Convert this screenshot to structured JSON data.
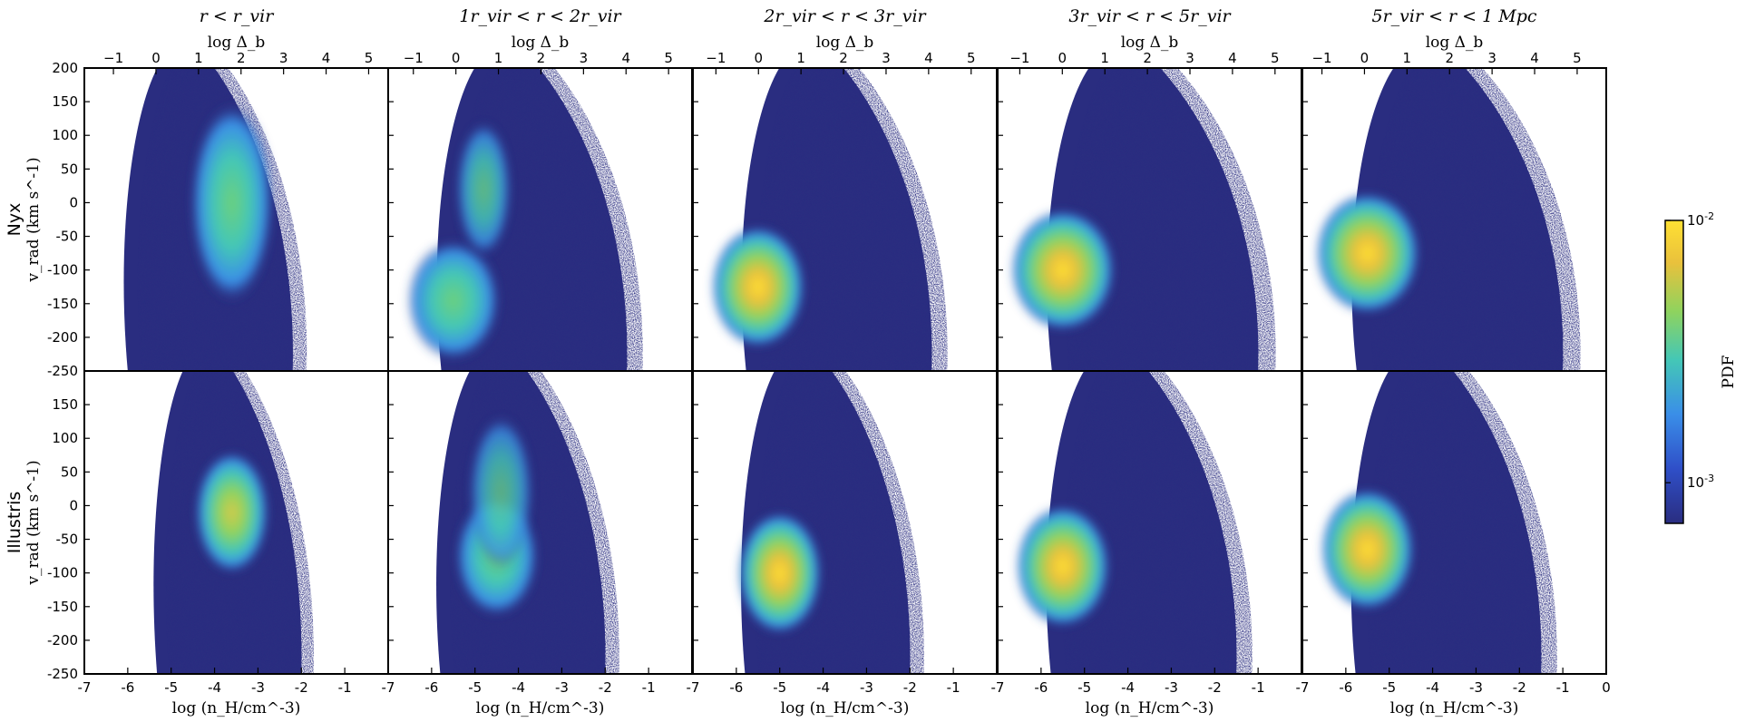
{
  "chart_data": {
    "type": "heatmap",
    "colors": {
      "background": "#ffffff",
      "low": "#2a2d80",
      "colormap": [
        "#2a2d80",
        "#2f4fc8",
        "#3a8ee8",
        "#44c7b6",
        "#8fd35e",
        "#e9c13c",
        "#ffe033"
      ]
    },
    "columns": [
      {
        "title": "r < r_vir"
      },
      {
        "title": "1r_vir < r < 2r_vir"
      },
      {
        "title": "2r_vir < r < 3r_vir"
      },
      {
        "title": "3r_vir < r < 5r_vir"
      },
      {
        "title": "5r_vir < r < 1 Mpc"
      }
    ],
    "rows": [
      {
        "name": "Nyx",
        "ylabel": "v_rad (km s^-1)"
      },
      {
        "name": "Illustris",
        "ylabel": "v_rad (km s^-1)"
      }
    ],
    "xlabel": "log (n_H/cm^-3)",
    "x2label": "log Δ_b",
    "x_bottom_ticks": [
      "-7",
      "-6",
      "-5",
      "-4",
      "-3",
      "-2",
      "-1"
    ],
    "x_bottom_ticks_last": [
      "-7",
      "-6",
      "-5",
      "-4",
      "-3",
      "-2",
      "-1",
      "0"
    ],
    "x_top_ticks": [
      "−1",
      "0",
      "1",
      "2",
      "3",
      "4",
      "5"
    ],
    "x_top_tick_positions": [
      [
        -6.33,
        -5.35,
        -4.37,
        -3.39,
        -2.41,
        -1.43,
        -0.45
      ],
      [
        -6.42,
        -5.44,
        -4.46,
        -3.48,
        -2.5,
        -1.52,
        -0.54
      ],
      [
        -6.47,
        -5.49,
        -4.51,
        -3.53,
        -2.55,
        -1.57,
        -0.59
      ],
      [
        -6.49,
        -5.51,
        -4.53,
        -3.55,
        -2.57,
        -1.59,
        -0.61
      ],
      [
        -6.55,
        -5.57,
        -4.59,
        -3.61,
        -2.63,
        -1.65,
        -0.67
      ]
    ],
    "xlim": [
      -7,
      0
    ],
    "y_ticks": [
      "200",
      "150",
      "100",
      "50",
      "0",
      "-50",
      "-100",
      "-150",
      "-200",
      "-250"
    ],
    "y_ticks_lower": [
      "150",
      "100",
      "50",
      "0",
      "-50",
      "-100",
      "-150",
      "-200",
      "-250"
    ],
    "ylim": [
      -250,
      200
    ],
    "colorbar": {
      "label": "PDF",
      "scale": "log",
      "range": [
        0.0007,
        0.01
      ],
      "ticks": [
        {
          "text": "10",
          "exp": "-2",
          "value": 0.01
        },
        {
          "text": "10",
          "exp": "-3",
          "value": 0.001
        }
      ]
    },
    "panels": [
      {
        "row": 0,
        "col": 0,
        "x_range": [
          -6.2,
          -2.2
        ],
        "y_range": [
          -250,
          200
        ],
        "peak": {
          "x": -3.6,
          "y": 0,
          "value": 0.0035
        }
      },
      {
        "row": 0,
        "col": 1,
        "x_range": [
          -6.0,
          -1.5
        ],
        "y_range": [
          -250,
          200
        ],
        "peak": {
          "x": -5.5,
          "y": -145,
          "value": 0.0035
        }
      },
      {
        "row": 0,
        "col": 2,
        "x_range": [
          -6.0,
          -1.5
        ],
        "y_range": [
          -250,
          200
        ],
        "peak": {
          "x": -5.5,
          "y": -125,
          "value": 0.008
        }
      },
      {
        "row": 0,
        "col": 3,
        "x_range": [
          -6.0,
          -1.0
        ],
        "y_range": [
          -250,
          200
        ],
        "peak": {
          "x": -5.5,
          "y": -100,
          "value": 0.007
        }
      },
      {
        "row": 0,
        "col": 4,
        "x_range": [
          -6.0,
          -1.0
        ],
        "y_range": [
          -250,
          200
        ],
        "peak": {
          "x": -5.5,
          "y": -75,
          "value": 0.007
        }
      },
      {
        "row": 1,
        "col": 0,
        "x_range": [
          -5.5,
          -2.0
        ],
        "y_range": [
          -250,
          200
        ],
        "peak": {
          "x": -3.6,
          "y": -10,
          "value": 0.004
        }
      },
      {
        "row": 1,
        "col": 1,
        "x_range": [
          -6.0,
          -2.0
        ],
        "y_range": [
          -250,
          200
        ],
        "peak": {
          "x": -4.5,
          "y": -75,
          "value": 0.003
        }
      },
      {
        "row": 1,
        "col": 2,
        "x_range": [
          -6.0,
          -2.0
        ],
        "y_range": [
          -250,
          200
        ],
        "peak": {
          "x": -5.0,
          "y": -100,
          "value": 0.006
        }
      },
      {
        "row": 1,
        "col": 3,
        "x_range": [
          -6.0,
          -1.5
        ],
        "y_range": [
          -250,
          200
        ],
        "peak": {
          "x": -5.5,
          "y": -90,
          "value": 0.009
        }
      },
      {
        "row": 1,
        "col": 4,
        "x_range": [
          -6.0,
          -1.5
        ],
        "y_range": [
          -250,
          200
        ],
        "peak": {
          "x": -5.5,
          "y": -65,
          "value": 0.008
        }
      }
    ]
  }
}
